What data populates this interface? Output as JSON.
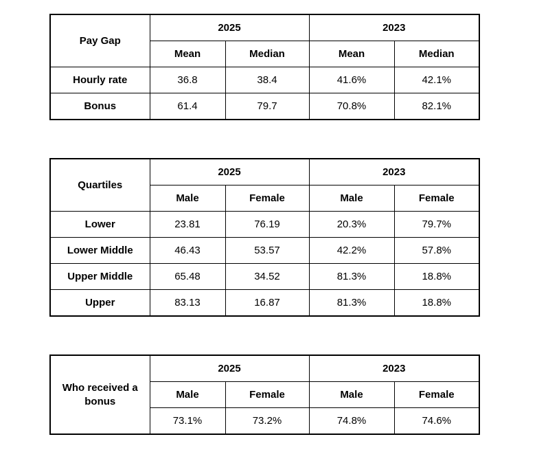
{
  "tables": [
    {
      "label": "Pay Gap",
      "year_headers": [
        "2025",
        "2023"
      ],
      "sub_headers": [
        "Mean",
        "Median",
        "Mean",
        "Median"
      ],
      "rows": [
        {
          "label": "Hourly rate",
          "values": [
            "36.8",
            "38.4",
            "41.6%",
            "42.1%"
          ]
        },
        {
          "label": "Bonus",
          "values": [
            "61.4",
            "79.7",
            "70.8%",
            "82.1%"
          ]
        }
      ]
    },
    {
      "label": "Quartiles",
      "year_headers": [
        "2025",
        "2023"
      ],
      "sub_headers": [
        "Male",
        "Female",
        "Male",
        "Female"
      ],
      "rows": [
        {
          "label": "Lower",
          "values": [
            "23.81",
            "76.19",
            "20.3%",
            "79.7%"
          ]
        },
        {
          "label": "Lower Middle",
          "values": [
            "46.43",
            "53.57",
            "42.2%",
            "57.8%"
          ]
        },
        {
          "label": "Upper Middle",
          "values": [
            "65.48",
            "34.52",
            "81.3%",
            "18.8%"
          ]
        },
        {
          "label": "Upper",
          "values": [
            "83.13",
            "16.87",
            "81.3%",
            "18.8%"
          ]
        }
      ]
    },
    {
      "label": "Who received a bonus",
      "year_headers": [
        "2025",
        "2023"
      ],
      "sub_headers": [
        "Male",
        "Female",
        "Male",
        "Female"
      ],
      "rows": [
        {
          "label": "",
          "values": [
            "73.1%",
            "73.2%",
            "74.8%",
            "74.6%"
          ]
        }
      ]
    }
  ],
  "colors": {
    "border": "#000000",
    "text": "#000000",
    "background": "#ffffff"
  }
}
